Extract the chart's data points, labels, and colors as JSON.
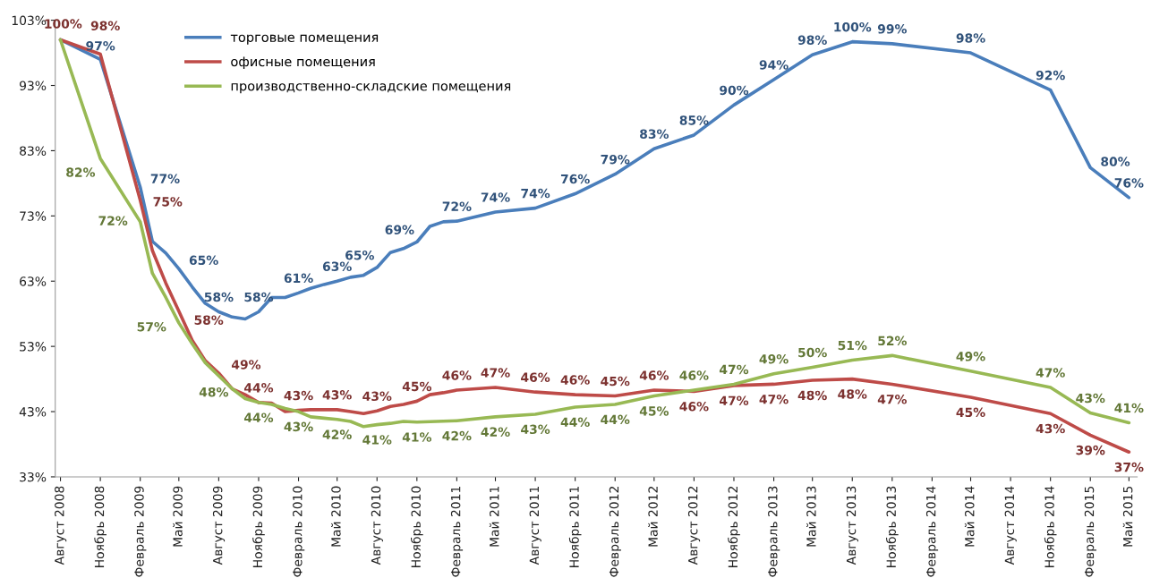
{
  "chart_data": {
    "type": "line",
    "ylim": [
      33,
      103
    ],
    "yticks": [
      {
        "value": 33,
        "label": "33%"
      },
      {
        "value": 43,
        "label": "43%"
      },
      {
        "value": 53,
        "label": "53%"
      },
      {
        "value": 63,
        "label": "63%"
      },
      {
        "value": 73,
        "label": "73%"
      },
      {
        "value": 83,
        "label": "83%"
      },
      {
        "value": 93,
        "label": "93%"
      },
      {
        "value": 103,
        "label": "103%"
      }
    ],
    "xlim": [
      "2008-07-20",
      "2015-05-20"
    ],
    "xticks": [
      {
        "value": "2008-08",
        "label": "Август 2008"
      },
      {
        "value": "2008-11",
        "label": "Ноябрь 2008"
      },
      {
        "value": "2009-02",
        "label": "Февраль 2009"
      },
      {
        "value": "2009-05",
        "label": "Май 2009"
      },
      {
        "value": "2009-08",
        "label": "Август 2009"
      },
      {
        "value": "2009-11",
        "label": "Ноябрь 2009"
      },
      {
        "value": "2010-02",
        "label": "Февраль 2010"
      },
      {
        "value": "2010-05",
        "label": "Май 2010"
      },
      {
        "value": "2010-08",
        "label": "Август 2010"
      },
      {
        "value": "2010-11",
        "label": "Ноябрь 2010"
      },
      {
        "value": "2011-02",
        "label": "Февраль 2011"
      },
      {
        "value": "2011-05",
        "label": "Май 2011"
      },
      {
        "value": "2011-08",
        "label": "Август 2011"
      },
      {
        "value": "2011-11",
        "label": "Ноябрь 2011"
      },
      {
        "value": "2012-02",
        "label": "Февраль 2012"
      },
      {
        "value": "2012-05",
        "label": "Май 2012"
      },
      {
        "value": "2012-08",
        "label": "Август 2012"
      },
      {
        "value": "2012-11",
        "label": "Ноябрь 2012"
      },
      {
        "value": "2013-02",
        "label": "Февраль 2013"
      },
      {
        "value": "2013-05",
        "label": "Май 2013"
      },
      {
        "value": "2013-08",
        "label": "Август 2013"
      },
      {
        "value": "2013-11",
        "label": "Ноябрь 2013"
      },
      {
        "value": "2014-02",
        "label": "Февраль 2014"
      },
      {
        "value": "2014-05",
        "label": "Май 2014"
      },
      {
        "value": "2014-08",
        "label": "Август 2014"
      },
      {
        "value": "2014-11",
        "label": "Ноябрь 2014"
      },
      {
        "value": "2015-02",
        "label": "Февраль 2015"
      },
      {
        "value": "2015-05",
        "label": "Май 2015"
      }
    ],
    "grid": false,
    "legend": "top",
    "marker": "none",
    "line_style": "solid",
    "series": [
      {
        "name": "торговые помещения",
        "color": "#4a7ebb",
        "x": [
          "2008-08",
          "2008-11",
          "2009-02",
          "2009-03",
          "2009-04",
          "2009-05",
          "2009-06",
          "2009-07",
          "2009-08",
          "2009-09",
          "2009-10",
          "2009-11",
          "2009-12",
          "2010-01",
          "2010-02",
          "2010-03",
          "2010-04",
          "2010-05",
          "2010-06",
          "2010-07",
          "2010-08",
          "2010-09",
          "2010-10",
          "2010-11",
          "2010-12",
          "2011-01",
          "2011-02",
          "2011-05",
          "2011-08",
          "2011-11",
          "2012-02",
          "2012-05",
          "2012-08",
          "2012-11",
          "2013-02",
          "2013-05",
          "2013-08",
          "2013-11",
          "2014-05",
          "2014-11",
          "2015-02",
          "2015-05"
        ],
        "values": [
          100,
          97.0,
          77.4,
          69.1,
          67.3,
          64.9,
          62.1,
          59.6,
          58.3,
          57.5,
          57.2,
          58.3,
          60.5,
          60.5,
          61.2,
          61.9,
          62.5,
          63.0,
          63.6,
          63.9,
          65.1,
          67.4,
          68.0,
          69.0,
          71.4,
          72.1,
          72.2,
          73.6,
          74.2,
          76.4,
          79.4,
          83.3,
          85.4,
          90.0,
          93.9,
          97.7,
          99.7,
          99.4,
          98.0,
          92.3,
          80.4,
          75.8
        ],
        "value_labels": [
          null,
          "97%",
          "77%",
          null,
          null,
          "65%",
          null,
          null,
          "58%",
          null,
          null,
          "58%",
          null,
          null,
          "61%",
          null,
          null,
          "63%",
          null,
          null,
          "65%",
          null,
          null,
          "69%",
          null,
          null,
          "72%",
          "74%",
          "74%",
          "76%",
          "79%",
          "83%",
          "85%",
          "90%",
          "94%",
          "98%",
          "100%",
          "99%",
          "98%",
          "92%",
          "80%",
          "76%"
        ]
      },
      {
        "name": "офисные помещения",
        "color": "#be4b48",
        "x": [
          "2008-08",
          "2008-11",
          "2009-02",
          "2009-03",
          "2009-04",
          "2009-05",
          "2009-06",
          "2009-07",
          "2009-08",
          "2009-09",
          "2009-10",
          "2009-11",
          "2009-12",
          "2010-01",
          "2010-02",
          "2010-03",
          "2010-04",
          "2010-05",
          "2010-06",
          "2010-07",
          "2010-08",
          "2010-09",
          "2010-10",
          "2010-11",
          "2010-12",
          "2011-01",
          "2011-02",
          "2011-05",
          "2011-08",
          "2011-11",
          "2012-02",
          "2012-05",
          "2012-08",
          "2012-11",
          "2013-02",
          "2013-05",
          "2013-08",
          "2013-11",
          "2014-05",
          "2014-11",
          "2015-02",
          "2015-05"
        ],
        "values": [
          100,
          97.8,
          75.4,
          67.7,
          62.7,
          58.4,
          53.9,
          50.8,
          48.9,
          46.5,
          45.6,
          44.4,
          44.3,
          43.0,
          43.2,
          43.3,
          43.3,
          43.3,
          43.0,
          42.7,
          43.1,
          43.8,
          44.1,
          44.6,
          45.6,
          45.9,
          46.3,
          46.7,
          46.0,
          45.6,
          45.4,
          46.3,
          46.1,
          47.0,
          47.2,
          47.8,
          48.0,
          47.2,
          45.2,
          42.7,
          39.4,
          36.8
        ],
        "value_labels": [
          "100%",
          "98%",
          "75%",
          null,
          null,
          "58%",
          null,
          null,
          "49%",
          null,
          null,
          "44%",
          null,
          null,
          "43%",
          null,
          null,
          "43%",
          null,
          null,
          "43%",
          null,
          null,
          "45%",
          null,
          null,
          "46%",
          "47%",
          "46%",
          "46%",
          "45%",
          "46%",
          "46%",
          "47%",
          "47%",
          "48%",
          "48%",
          "47%",
          "45%",
          "43%",
          "39%",
          "37%"
        ]
      },
      {
        "name": "производственно-складские помещения",
        "color": "#98b954",
        "x": [
          "2008-08",
          "2008-11",
          "2009-02",
          "2009-03",
          "2009-04",
          "2009-05",
          "2009-06",
          "2009-07",
          "2009-08",
          "2009-09",
          "2009-10",
          "2009-11",
          "2009-12",
          "2010-01",
          "2010-02",
          "2010-03",
          "2010-04",
          "2010-05",
          "2010-06",
          "2010-07",
          "2010-08",
          "2010-09",
          "2010-10",
          "2010-11",
          "2011-02",
          "2011-05",
          "2011-08",
          "2011-11",
          "2012-02",
          "2012-05",
          "2012-08",
          "2012-11",
          "2013-02",
          "2013-05",
          "2013-08",
          "2013-11",
          "2014-05",
          "2014-11",
          "2015-02",
          "2015-05"
        ],
        "values": [
          100,
          81.8,
          72.1,
          64.2,
          60.5,
          56.6,
          53.4,
          50.5,
          48.5,
          46.5,
          45.0,
          44.4,
          44.1,
          43.5,
          43.0,
          42.2,
          42.0,
          41.8,
          41.5,
          40.7,
          41.0,
          41.2,
          41.5,
          41.4,
          41.6,
          42.2,
          42.6,
          43.7,
          44.1,
          45.4,
          46.3,
          47.2,
          48.8,
          49.8,
          50.9,
          51.6,
          49.2,
          46.7,
          42.8,
          41.3
        ],
        "value_labels": [
          null,
          "82%",
          "72%",
          null,
          null,
          "57%",
          null,
          null,
          "48%",
          null,
          null,
          "44%",
          null,
          null,
          "43%",
          null,
          null,
          "42%",
          null,
          null,
          "41%",
          null,
          null,
          "41%",
          "42%",
          "42%",
          "43%",
          "44%",
          "44%",
          "45%",
          "46%",
          "47%",
          "49%",
          "50%",
          "51%",
          "52%",
          "49%",
          "47%",
          "43%",
          "41%"
        ]
      }
    ]
  }
}
